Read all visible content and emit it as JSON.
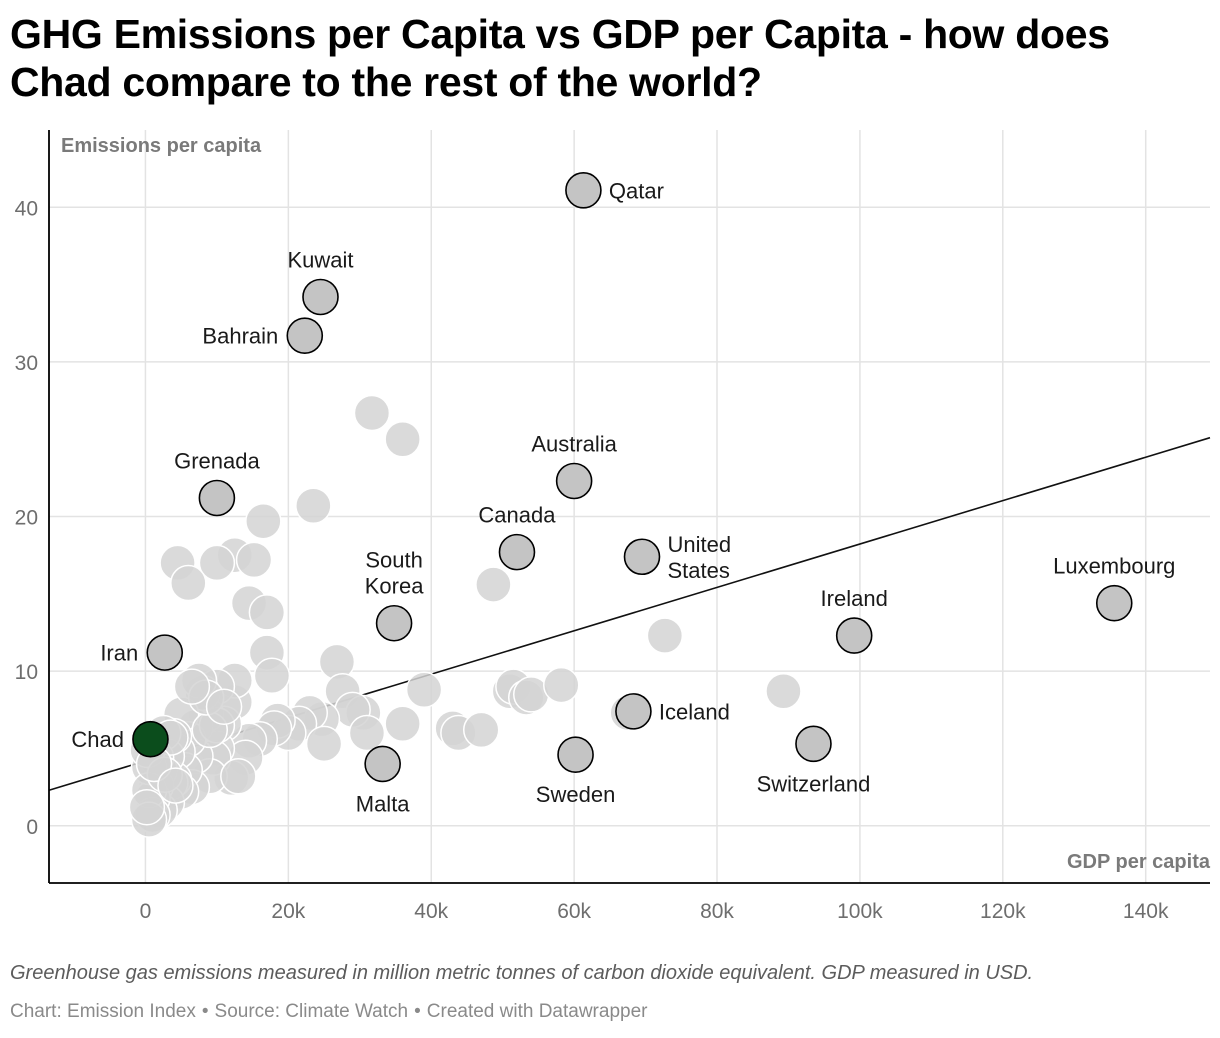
{
  "title": "GHG Emissions per Capita vs GDP per Capita - how does Chad compare to the rest of the world?",
  "note": "Greenhouse gas emissions measured in million metric tonnes of carbon dioxide equivalent. GDP measured in USD.",
  "credits": [
    "Chart: Emission Index",
    "Source: Climate Watch",
    "Created with Datawrapper"
  ],
  "credit_separator": "•",
  "colors": {
    "highlight": "#0b4d1c",
    "labeled": "#c4c4c4",
    "background_point": "#d3d3d3",
    "axis": "#000000",
    "grid": "#e3e3e3"
  },
  "chart_data": {
    "type": "scatter",
    "xlabel": "GDP per capita",
    "ylabel": "Emissions per capita",
    "xlim": [
      -13500,
      149000
    ],
    "ylim": [
      -3.7,
      45
    ],
    "x_ticks": [
      0,
      20000,
      40000,
      60000,
      80000,
      100000,
      120000,
      140000
    ],
    "x_tick_labels": [
      "0",
      "20k",
      "40k",
      "60k",
      "80k",
      "100k",
      "120k",
      "140k"
    ],
    "y_ticks": [
      0,
      10,
      20,
      30,
      40
    ],
    "y_tick_labels": [
      "0",
      "10",
      "20",
      "30",
      "40"
    ],
    "grid": true,
    "trendline": {
      "x": [
        -13500,
        149000
      ],
      "y": [
        2.3,
        25.1
      ]
    },
    "highlight": {
      "name": "Chad",
      "x": 700,
      "y": 5.6
    },
    "labeled_points": [
      {
        "name": "Qatar",
        "x": 61300,
        "y": 41.1,
        "label_pos": "right"
      },
      {
        "name": "Kuwait",
        "x": 24500,
        "y": 34.2,
        "label_pos": "above"
      },
      {
        "name": "Bahrain",
        "x": 22300,
        "y": 31.7,
        "label_pos": "left"
      },
      {
        "name": "Grenada",
        "x": 10000,
        "y": 21.2,
        "label_pos": "above"
      },
      {
        "name": "Australia",
        "x": 60000,
        "y": 22.3,
        "label_pos": "above"
      },
      {
        "name": "Canada",
        "x": 52000,
        "y": 17.7,
        "label_pos": "above"
      },
      {
        "name": "United States",
        "x": 69500,
        "y": 17.4,
        "label_pos": "right",
        "label_lines": [
          "United",
          "States"
        ]
      },
      {
        "name": "South Korea",
        "x": 34800,
        "y": 13.1,
        "label_pos": "above",
        "label_lines": [
          "South",
          "Korea"
        ]
      },
      {
        "name": "Luxembourg",
        "x": 135600,
        "y": 14.4,
        "label_pos": "above"
      },
      {
        "name": "Ireland",
        "x": 99200,
        "y": 12.3,
        "label_pos": "above"
      },
      {
        "name": "Iran",
        "x": 2700,
        "y": 11.2,
        "label_pos": "left"
      },
      {
        "name": "Iceland",
        "x": 68300,
        "y": 7.4,
        "label_pos": "right"
      },
      {
        "name": "Malta",
        "x": 33200,
        "y": 4.0,
        "label_pos": "below"
      },
      {
        "name": "Sweden",
        "x": 60200,
        "y": 4.6,
        "label_pos": "below"
      },
      {
        "name": "Switzerland",
        "x": 93500,
        "y": 5.3,
        "label_pos": "below"
      }
    ],
    "other_points": [
      [
        31700,
        26.7
      ],
      [
        36000,
        25.0
      ],
      [
        23500,
        20.7
      ],
      [
        16500,
        19.7
      ],
      [
        12500,
        17.5
      ],
      [
        10000,
        17.0
      ],
      [
        4500,
        17.0
      ],
      [
        6000,
        15.7
      ],
      [
        15200,
        17.2
      ],
      [
        14500,
        14.4
      ],
      [
        17000,
        13.8
      ],
      [
        48700,
        15.6
      ],
      [
        72700,
        12.3
      ],
      [
        17000,
        11.2
      ],
      [
        26800,
        10.6
      ],
      [
        17700,
        9.7
      ],
      [
        27600,
        8.7
      ],
      [
        39000,
        8.8
      ],
      [
        51000,
        8.7
      ],
      [
        51500,
        9.0
      ],
      [
        53300,
        8.3
      ],
      [
        54000,
        8.5
      ],
      [
        58200,
        9.1
      ],
      [
        89300,
        8.7
      ],
      [
        67500,
        7.3
      ],
      [
        36000,
        6.6
      ],
      [
        43000,
        6.3
      ],
      [
        43800,
        6.0
      ],
      [
        47000,
        6.2
      ],
      [
        30500,
        7.3
      ],
      [
        29000,
        7.5
      ],
      [
        31000,
        6.0
      ],
      [
        24700,
        6.9
      ],
      [
        23000,
        7.3
      ],
      [
        21500,
        6.6
      ],
      [
        25000,
        5.3
      ],
      [
        20000,
        6.0
      ],
      [
        18500,
        6.8
      ],
      [
        18000,
        6.3
      ],
      [
        16000,
        5.6
      ],
      [
        14500,
        5.5
      ],
      [
        14000,
        4.4
      ],
      [
        12500,
        8.0
      ],
      [
        12500,
        9.4
      ],
      [
        12000,
        3.1
      ],
      [
        11000,
        6.6
      ],
      [
        10000,
        9.0
      ],
      [
        10000,
        5.0
      ],
      [
        9500,
        4.4
      ],
      [
        9000,
        3.2
      ],
      [
        8500,
        7.2
      ],
      [
        8000,
        8.6
      ],
      [
        7500,
        9.4
      ],
      [
        7000,
        6.4
      ],
      [
        7000,
        4.5
      ],
      [
        6500,
        2.5
      ],
      [
        6000,
        5.6
      ],
      [
        5500,
        3.6
      ],
      [
        5000,
        7.2
      ],
      [
        5000,
        2.2
      ],
      [
        4500,
        4.8
      ],
      [
        4000,
        5.8
      ],
      [
        4000,
        3.0
      ],
      [
        3500,
        2.8
      ],
      [
        3000,
        4.5
      ],
      [
        3000,
        1.5
      ],
      [
        2500,
        6.0
      ],
      [
        2000,
        3.6
      ],
      [
        2000,
        1.0
      ],
      [
        1500,
        4.4
      ],
      [
        1500,
        2.6
      ],
      [
        1000,
        1.8
      ],
      [
        1000,
        0.7
      ],
      [
        500,
        3.8
      ],
      [
        500,
        2.3
      ],
      [
        500,
        0.4
      ],
      [
        200,
        1.2
      ],
      [
        300,
        4.9
      ],
      [
        10000,
        6.5
      ],
      [
        9000,
        6.2
      ],
      [
        8500,
        8.3
      ],
      [
        11000,
        7.7
      ],
      [
        6500,
        9.0
      ],
      [
        13000,
        3.2
      ],
      [
        3500,
        5.7
      ],
      [
        2700,
        3.3
      ],
      [
        1200,
        4.0
      ],
      [
        4200,
        2.6
      ]
    ]
  }
}
